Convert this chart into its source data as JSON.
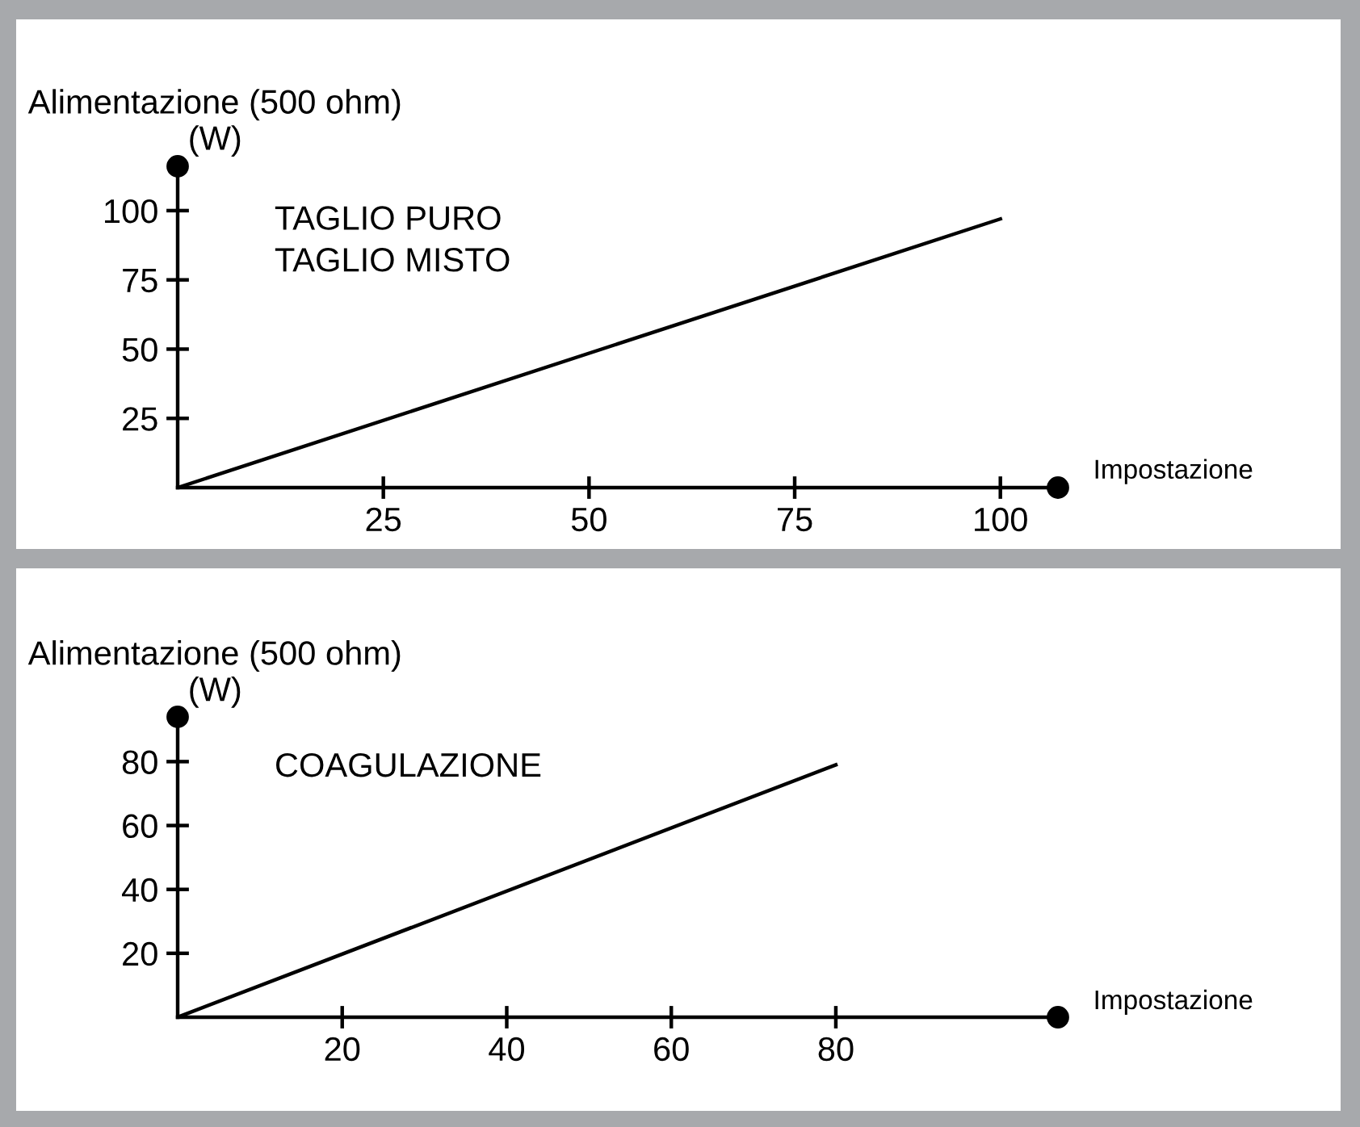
{
  "chart_data": [
    {
      "type": "line",
      "xlabel": "Impostazione",
      "ylabel": "Alimentazione (500 ohm)\n(W)",
      "x": [
        0,
        100
      ],
      "series": [
        {
          "color": "#000000",
          "values": [
            0,
            97
          ]
        }
      ],
      "xlim": [
        0,
        107
      ],
      "ylim": [
        0,
        116
      ],
      "xticks": [
        25,
        50,
        75,
        100
      ],
      "yticks": [
        25,
        50,
        75,
        100
      ],
      "annotations": [
        "TAGLIO PURO",
        "TAGLIO MISTO"
      ],
      "grid": false,
      "legend": false,
      "marker": "none",
      "line_style": "solid"
    },
    {
      "type": "line",
      "xlabel": "Impostazione",
      "ylabel": "Alimentazione (500 ohm)\n(W)",
      "x": [
        0,
        80
      ],
      "series": [
        {
          "color": "#000000",
          "values": [
            0,
            79
          ]
        }
      ],
      "xlim": [
        0,
        107
      ],
      "ylim": [
        0,
        94
      ],
      "xticks": [
        20,
        40,
        60,
        80
      ],
      "yticks": [
        20,
        40,
        60,
        80
      ],
      "annotations": [
        "COAGULAZIONE"
      ],
      "grid": false,
      "legend": false,
      "marker": "none",
      "line_style": "solid"
    }
  ]
}
